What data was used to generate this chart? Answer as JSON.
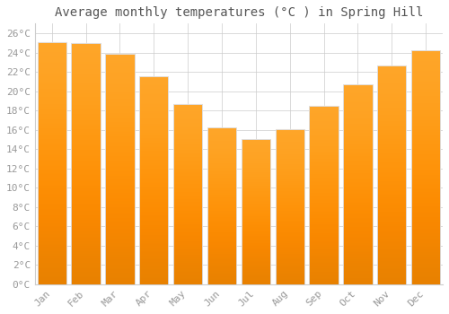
{
  "title": "Average monthly temperatures (°C ) in Spring Hill",
  "months": [
    "Jan",
    "Feb",
    "Mar",
    "Apr",
    "May",
    "Jun",
    "Jul",
    "Aug",
    "Sep",
    "Oct",
    "Nov",
    "Dec"
  ],
  "temperatures": [
    25.1,
    25.0,
    23.9,
    21.5,
    18.7,
    16.2,
    15.0,
    16.1,
    18.5,
    20.7,
    22.7,
    24.2
  ],
  "bar_color_top": "#FFB700",
  "bar_color_bottom": "#FF9500",
  "bar_edge_color": "#DDDDDD",
  "background_color": "#FFFFFF",
  "grid_color": "#CCCCCC",
  "tick_label_color": "#999999",
  "title_color": "#555555",
  "ylim": [
    0,
    27
  ],
  "yticks": [
    0,
    2,
    4,
    6,
    8,
    10,
    12,
    14,
    16,
    18,
    20,
    22,
    24,
    26
  ],
  "title_fontsize": 10,
  "tick_fontsize": 8,
  "bar_width": 0.85
}
